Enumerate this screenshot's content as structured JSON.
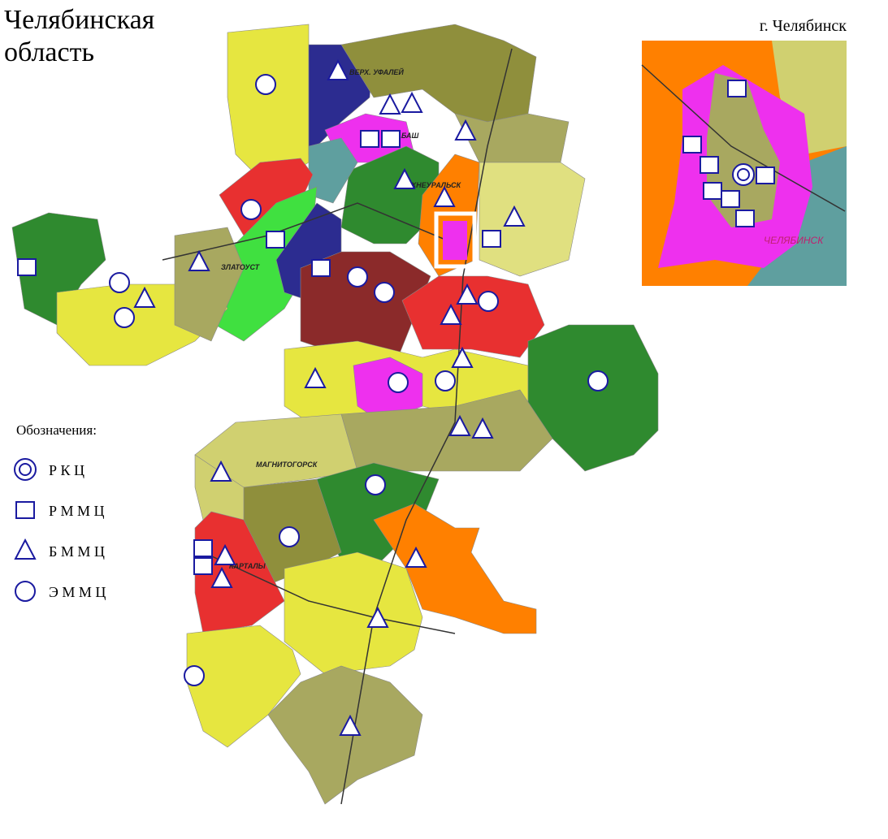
{
  "title": "Челябинская область",
  "inset": {
    "title": "г. Челябинск",
    "label": "ЧЕЛЯБИНСК"
  },
  "legend": {
    "title": "Обозначения:",
    "items": [
      "Р К Ц",
      "Р М М Ц",
      "Б М М Ц",
      "Э М М Ц"
    ]
  },
  "places": [
    "ВЕРХ. УФАЛЕЙ",
    "КАРАБАШ",
    "ЗЛАТОУСТ",
    "ВЕРХНЕУРАЛЬСК",
    "МАГНИТОГОРСК",
    "КАРТАЛЫ"
  ]
}
